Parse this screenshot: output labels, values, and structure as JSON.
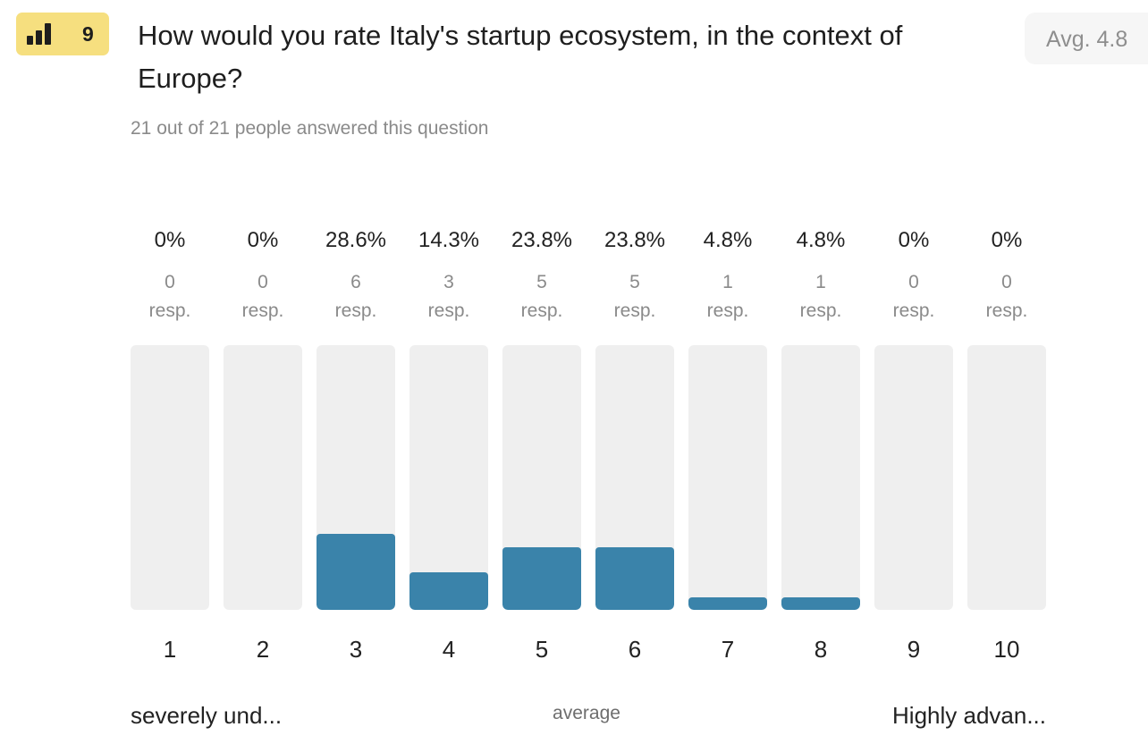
{
  "header": {
    "badge_number": "9",
    "badge_icon": "bar-chart-icon",
    "question": "How would you rate Italy's startup ecosystem, in the context of Europe?",
    "average": "Avg. 4.8",
    "answered": "21 out of 21 people answered this question"
  },
  "scale": {
    "low_label": "severely und...",
    "mid_label": "average",
    "high_label": "Highly advan..."
  },
  "colors": {
    "badge": "#f6df7f",
    "bar_fill": "#3a83aa",
    "bar_track": "#efefef"
  },
  "chart_data": {
    "type": "bar",
    "categories": [
      "1",
      "2",
      "3",
      "4",
      "5",
      "6",
      "7",
      "8",
      "9",
      "10"
    ],
    "values": [
      0,
      0,
      28.6,
      14.3,
      23.8,
      23.8,
      4.8,
      4.8,
      0,
      0
    ],
    "percent_labels": [
      "0%",
      "0%",
      "28.6%",
      "14.3%",
      "23.8%",
      "23.8%",
      "4.8%",
      "4.8%",
      "0%",
      "0%"
    ],
    "responses": [
      "0",
      "0",
      "6",
      "3",
      "5",
      "5",
      "1",
      "1",
      "0",
      "0"
    ],
    "response_unit": "resp.",
    "ylim": [
      0,
      100
    ],
    "grid": false
  }
}
